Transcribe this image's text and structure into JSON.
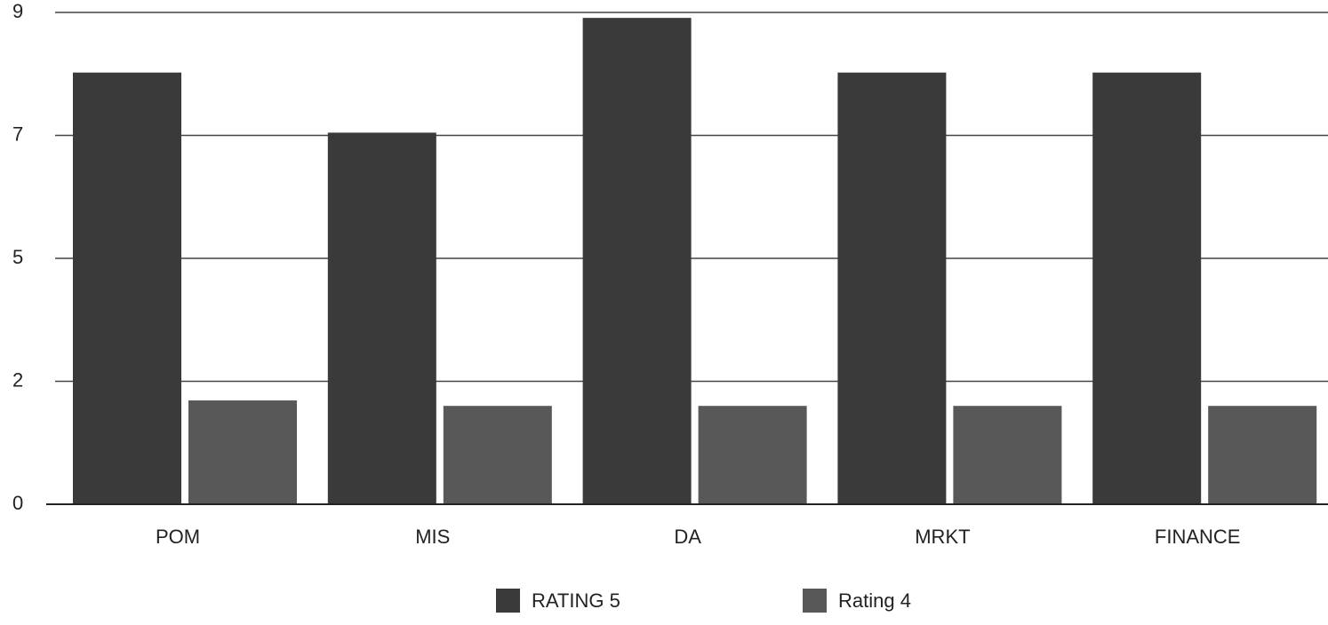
{
  "chart_data": {
    "type": "bar",
    "categories": [
      "POM",
      "MIS",
      "DA",
      "MRKT",
      "FINANCE"
    ],
    "series": [
      {
        "name": "RATING 5",
        "color": "#3a3a3a",
        "values": [
          7.9,
          6.8,
          8.9,
          7.9,
          7.9
        ]
      },
      {
        "name": "Rating 4",
        "color": "#585858",
        "values": [
          1.9,
          1.8,
          1.8,
          1.8,
          1.8
        ]
      }
    ],
    "ylim": [
      0,
      9
    ],
    "yticks": [
      0,
      {
        "value": 2.25,
        "label": "2"
      },
      {
        "value": 4.5,
        "label": "5"
      },
      {
        "value": 6.75,
        "label": "7"
      },
      9
    ],
    "grid": true,
    "legend": "bottom"
  }
}
